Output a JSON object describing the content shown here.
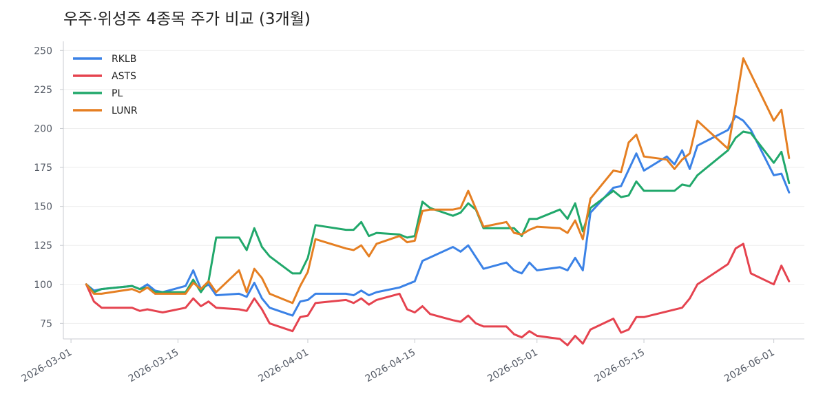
{
  "chart_data": {
    "type": "line",
    "title": "우주·위성주 4종목 주가 비교 (3개월)",
    "xlabel": "",
    "ylabel": "",
    "x_range": [
      "2026-02-28",
      "2026-06-05"
    ],
    "ylim": [
      65,
      255
    ],
    "yticks": [
      75,
      100,
      125,
      150,
      175,
      200,
      225,
      250
    ],
    "xticks": [
      "2026-03-01",
      "2026-03-15",
      "2026-04-01",
      "2026-04-15",
      "2026-05-01",
      "2026-05-15",
      "2026-06-01"
    ],
    "grid": "horizontal",
    "legend_position": "top-left",
    "series": [
      {
        "name": "RKLB",
        "color": "#3b82e6",
        "points": [
          [
            "2026-03-03",
            100
          ],
          [
            "2026-03-04",
            96
          ],
          [
            "2026-03-05",
            97
          ],
          [
            "2026-03-09",
            99
          ],
          [
            "2026-03-10",
            97
          ],
          [
            "2026-03-11",
            100
          ],
          [
            "2026-03-12",
            96
          ],
          [
            "2026-03-13",
            95
          ],
          [
            "2026-03-16",
            99
          ],
          [
            "2026-03-17",
            109
          ],
          [
            "2026-03-18",
            97
          ],
          [
            "2026-03-19",
            100
          ],
          [
            "2026-03-20",
            93
          ],
          [
            "2026-03-23",
            94
          ],
          [
            "2026-03-24",
            92
          ],
          [
            "2026-03-25",
            101
          ],
          [
            "2026-03-26",
            91
          ],
          [
            "2026-03-27",
            85
          ],
          [
            "2026-03-30",
            80
          ],
          [
            "2026-03-31",
            89
          ],
          [
            "2026-04-01",
            90
          ],
          [
            "2026-04-02",
            94
          ],
          [
            "2026-04-06",
            94
          ],
          [
            "2026-04-07",
            93
          ],
          [
            "2026-04-08",
            96
          ],
          [
            "2026-04-09",
            93
          ],
          [
            "2026-04-10",
            95
          ],
          [
            "2026-04-13",
            98
          ],
          [
            "2026-04-14",
            100
          ],
          [
            "2026-04-15",
            102
          ],
          [
            "2026-04-16",
            115
          ],
          [
            "2026-04-20",
            124
          ],
          [
            "2026-04-21",
            121
          ],
          [
            "2026-04-22",
            125
          ],
          [
            "2026-04-24",
            110
          ],
          [
            "2026-04-27",
            114
          ],
          [
            "2026-04-28",
            109
          ],
          [
            "2026-04-29",
            107
          ],
          [
            "2026-04-30",
            114
          ],
          [
            "2026-05-01",
            109
          ],
          [
            "2026-05-04",
            111
          ],
          [
            "2026-05-05",
            109
          ],
          [
            "2026-05-06",
            117
          ],
          [
            "2026-05-07",
            109
          ],
          [
            "2026-05-08",
            146
          ],
          [
            "2026-05-11",
            162
          ],
          [
            "2026-05-12",
            163
          ],
          [
            "2026-05-14",
            184
          ],
          [
            "2026-05-15",
            173
          ],
          [
            "2026-05-18",
            182
          ],
          [
            "2026-05-19",
            177
          ],
          [
            "2026-05-20",
            186
          ],
          [
            "2026-05-21",
            174
          ],
          [
            "2026-05-22",
            189
          ],
          [
            "2026-05-26",
            199
          ],
          [
            "2026-05-27",
            208
          ],
          [
            "2026-05-28",
            205
          ],
          [
            "2026-05-29",
            199
          ],
          [
            "2026-06-01",
            170
          ],
          [
            "2026-06-02",
            171
          ],
          [
            "2026-06-03",
            159
          ]
        ]
      },
      {
        "name": "ASTS",
        "color": "#e5434f",
        "points": [
          [
            "2026-03-03",
            100
          ],
          [
            "2026-03-04",
            89
          ],
          [
            "2026-03-05",
            85
          ],
          [
            "2026-03-09",
            85
          ],
          [
            "2026-03-10",
            83
          ],
          [
            "2026-03-11",
            84
          ],
          [
            "2026-03-12",
            83
          ],
          [
            "2026-03-13",
            82
          ],
          [
            "2026-03-16",
            85
          ],
          [
            "2026-03-17",
            91
          ],
          [
            "2026-03-18",
            86
          ],
          [
            "2026-03-19",
            89
          ],
          [
            "2026-03-20",
            85
          ],
          [
            "2026-03-23",
            84
          ],
          [
            "2026-03-24",
            83
          ],
          [
            "2026-03-25",
            91
          ],
          [
            "2026-03-26",
            84
          ],
          [
            "2026-03-27",
            75
          ],
          [
            "2026-03-30",
            70
          ],
          [
            "2026-03-31",
            79
          ],
          [
            "2026-04-01",
            80
          ],
          [
            "2026-04-02",
            88
          ],
          [
            "2026-04-06",
            90
          ],
          [
            "2026-04-07",
            88
          ],
          [
            "2026-04-08",
            91
          ],
          [
            "2026-04-09",
            87
          ],
          [
            "2026-04-10",
            90
          ],
          [
            "2026-04-13",
            94
          ],
          [
            "2026-04-14",
            84
          ],
          [
            "2026-04-15",
            82
          ],
          [
            "2026-04-16",
            86
          ],
          [
            "2026-04-17",
            81
          ],
          [
            "2026-04-20",
            77
          ],
          [
            "2026-04-21",
            76
          ],
          [
            "2026-04-22",
            80
          ],
          [
            "2026-04-23",
            75
          ],
          [
            "2026-04-24",
            73
          ],
          [
            "2026-04-27",
            73
          ],
          [
            "2026-04-28",
            68
          ],
          [
            "2026-04-29",
            66
          ],
          [
            "2026-04-30",
            70
          ],
          [
            "2026-05-01",
            67
          ],
          [
            "2026-05-04",
            65
          ],
          [
            "2026-05-05",
            61
          ],
          [
            "2026-05-06",
            67
          ],
          [
            "2026-05-07",
            62
          ],
          [
            "2026-05-08",
            71
          ],
          [
            "2026-05-11",
            78
          ],
          [
            "2026-05-12",
            69
          ],
          [
            "2026-05-13",
            71
          ],
          [
            "2026-05-14",
            79
          ],
          [
            "2026-05-15",
            79
          ],
          [
            "2026-05-20",
            85
          ],
          [
            "2026-05-21",
            91
          ],
          [
            "2026-05-22",
            100
          ],
          [
            "2026-05-26",
            113
          ],
          [
            "2026-05-27",
            123
          ],
          [
            "2026-05-28",
            126
          ],
          [
            "2026-05-29",
            107
          ],
          [
            "2026-06-01",
            100
          ],
          [
            "2026-06-02",
            112
          ],
          [
            "2026-06-03",
            102
          ]
        ]
      },
      {
        "name": "PL",
        "color": "#21a86b",
        "points": [
          [
            "2026-03-03",
            100
          ],
          [
            "2026-03-04",
            95
          ],
          [
            "2026-03-05",
            97
          ],
          [
            "2026-03-09",
            99
          ],
          [
            "2026-03-10",
            97
          ],
          [
            "2026-03-11",
            98
          ],
          [
            "2026-03-12",
            95
          ],
          [
            "2026-03-13",
            95
          ],
          [
            "2026-03-16",
            95
          ],
          [
            "2026-03-17",
            103
          ],
          [
            "2026-03-18",
            95
          ],
          [
            "2026-03-19",
            102
          ],
          [
            "2026-03-20",
            130
          ],
          [
            "2026-03-23",
            130
          ],
          [
            "2026-03-24",
            122
          ],
          [
            "2026-03-25",
            136
          ],
          [
            "2026-03-26",
            124
          ],
          [
            "2026-03-27",
            118
          ],
          [
            "2026-03-30",
            107
          ],
          [
            "2026-03-31",
            107
          ],
          [
            "2026-04-01",
            117
          ],
          [
            "2026-04-02",
            138
          ],
          [
            "2026-04-06",
            135
          ],
          [
            "2026-04-07",
            135
          ],
          [
            "2026-04-08",
            140
          ],
          [
            "2026-04-09",
            131
          ],
          [
            "2026-04-10",
            133
          ],
          [
            "2026-04-13",
            132
          ],
          [
            "2026-04-14",
            130
          ],
          [
            "2026-04-15",
            131
          ],
          [
            "2026-04-16",
            153
          ],
          [
            "2026-04-17",
            149
          ],
          [
            "2026-04-20",
            144
          ],
          [
            "2026-04-21",
            146
          ],
          [
            "2026-04-22",
            152
          ],
          [
            "2026-04-23",
            148
          ],
          [
            "2026-04-24",
            136
          ],
          [
            "2026-04-28",
            136
          ],
          [
            "2026-04-29",
            131
          ],
          [
            "2026-04-30",
            142
          ],
          [
            "2026-05-01",
            142
          ],
          [
            "2026-05-04",
            148
          ],
          [
            "2026-05-05",
            142
          ],
          [
            "2026-05-06",
            152
          ],
          [
            "2026-05-07",
            134
          ],
          [
            "2026-05-08",
            149
          ],
          [
            "2026-05-11",
            160
          ],
          [
            "2026-05-12",
            156
          ],
          [
            "2026-05-13",
            157
          ],
          [
            "2026-05-14",
            166
          ],
          [
            "2026-05-15",
            160
          ],
          [
            "2026-05-19",
            160
          ],
          [
            "2026-05-20",
            164
          ],
          [
            "2026-05-21",
            163
          ],
          [
            "2026-05-22",
            170
          ],
          [
            "2026-05-26",
            186
          ],
          [
            "2026-05-27",
            194
          ],
          [
            "2026-05-28",
            198
          ],
          [
            "2026-05-29",
            197
          ],
          [
            "2026-06-01",
            178
          ],
          [
            "2026-06-02",
            185
          ],
          [
            "2026-06-03",
            165
          ]
        ]
      },
      {
        "name": "LUNR",
        "color": "#e57f22",
        "points": [
          [
            "2026-03-03",
            100
          ],
          [
            "2026-03-04",
            94
          ],
          [
            "2026-03-05",
            94
          ],
          [
            "2026-03-09",
            97
          ],
          [
            "2026-03-10",
            95
          ],
          [
            "2026-03-11",
            98
          ],
          [
            "2026-03-12",
            94
          ],
          [
            "2026-03-16",
            94
          ],
          [
            "2026-03-17",
            101
          ],
          [
            "2026-03-18",
            97
          ],
          [
            "2026-03-19",
            102
          ],
          [
            "2026-03-20",
            95
          ],
          [
            "2026-03-23",
            109
          ],
          [
            "2026-03-24",
            95
          ],
          [
            "2026-03-25",
            110
          ],
          [
            "2026-03-26",
            104
          ],
          [
            "2026-03-27",
            94
          ],
          [
            "2026-03-30",
            88
          ],
          [
            "2026-03-31",
            99
          ],
          [
            "2026-04-01",
            108
          ],
          [
            "2026-04-02",
            129
          ],
          [
            "2026-04-06",
            123
          ],
          [
            "2026-04-07",
            122
          ],
          [
            "2026-04-08",
            125
          ],
          [
            "2026-04-09",
            118
          ],
          [
            "2026-04-10",
            126
          ],
          [
            "2026-04-13",
            131
          ],
          [
            "2026-04-14",
            127
          ],
          [
            "2026-04-15",
            128
          ],
          [
            "2026-04-16",
            147
          ],
          [
            "2026-04-17",
            148
          ],
          [
            "2026-04-20",
            148
          ],
          [
            "2026-04-21",
            149
          ],
          [
            "2026-04-22",
            160
          ],
          [
            "2026-04-24",
            137
          ],
          [
            "2026-04-27",
            140
          ],
          [
            "2026-04-28",
            133
          ],
          [
            "2026-04-29",
            132
          ],
          [
            "2026-04-30",
            135
          ],
          [
            "2026-05-01",
            137
          ],
          [
            "2026-05-04",
            136
          ],
          [
            "2026-05-05",
            133
          ],
          [
            "2026-05-06",
            141
          ],
          [
            "2026-05-07",
            129
          ],
          [
            "2026-05-08",
            155
          ],
          [
            "2026-05-11",
            173
          ],
          [
            "2026-05-12",
            172
          ],
          [
            "2026-05-13",
            191
          ],
          [
            "2026-05-14",
            196
          ],
          [
            "2026-05-15",
            182
          ],
          [
            "2026-05-18",
            180
          ],
          [
            "2026-05-19",
            174
          ],
          [
            "2026-05-20",
            180
          ],
          [
            "2026-05-21",
            184
          ],
          [
            "2026-05-22",
            205
          ],
          [
            "2026-05-26",
            187
          ],
          [
            "2026-05-27",
            215
          ],
          [
            "2026-05-28",
            245
          ],
          [
            "2026-06-01",
            205
          ],
          [
            "2026-06-02",
            212
          ],
          [
            "2026-06-03",
            181
          ]
        ]
      }
    ]
  }
}
